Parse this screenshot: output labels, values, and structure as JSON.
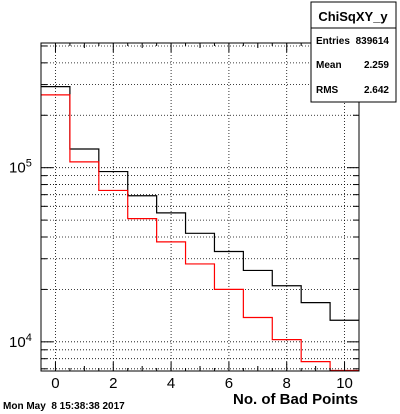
{
  "chart_data": {
    "type": "histogram",
    "title": "ChiSqXY_y",
    "xlabel": "No. of Bad Points",
    "ylabel": "",
    "log_y": true,
    "grid": true,
    "xlim": [
      -0.5,
      10.5
    ],
    "ylim": [
      6800,
      520000
    ],
    "x_ticks": [
      "0",
      "2",
      "4",
      "6",
      "8",
      "10"
    ],
    "y_ticks": [
      "10^4",
      "10^5"
    ],
    "bin_edges": [
      -0.5,
      0.5,
      1.5,
      2.5,
      3.5,
      4.5,
      5.5,
      6.5,
      7.5,
      8.5,
      9.5,
      10.5
    ],
    "series": [
      {
        "color": "#000000",
        "values": [
          292000,
          128000,
          95000,
          69000,
          55000,
          42000,
          33000,
          25700,
          21000,
          16800,
          13300
        ]
      },
      {
        "color": "#ff0000",
        "values": [
          262000,
          108000,
          74000,
          51000,
          37500,
          28000,
          20000,
          13800,
          10300,
          7700,
          6850
        ]
      }
    ],
    "stats": {
      "title": "ChiSqXY_y",
      "rows": [
        {
          "label": "Entries",
          "value": "839614"
        },
        {
          "label": "Mean",
          "value": "2.259"
        },
        {
          "label": "RMS",
          "value": "2.642"
        }
      ]
    }
  },
  "footer": {
    "timestamp": "Mon May  8 15:38:38 2017"
  }
}
